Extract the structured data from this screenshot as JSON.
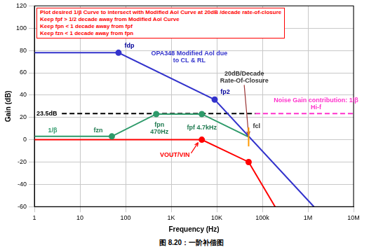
{
  "chart_data": {
    "type": "line",
    "title": "图 8.20：一阶补偿图",
    "x_label": "Frequency (Hz)",
    "y_label": "Gain (dB)",
    "log": "x",
    "grid": true,
    "xlim": [
      1,
      10000000
    ],
    "xticks": [
      1,
      10,
      100,
      {
        "value": 1000,
        "label": "1K"
      },
      {
        "value": 10000,
        "label": "10K"
      },
      {
        "value": 100000,
        "label": "100k"
      },
      {
        "value": 1000000,
        "label": "1M"
      },
      {
        "value": 10000000,
        "label": "10M"
      }
    ],
    "ylim": [
      -60,
      120
    ],
    "yticks": [
      -60,
      -40,
      -20,
      0,
      20,
      40,
      60,
      80,
      100,
      120
    ],
    "text_box": {
      "color": "#ff0000",
      "lines": [
        "Plot desired 1/β Curve to intersect with Modified Aol Curve at 20dB /decade rate-of-closure",
        "Keep fpf > 1/2 decade away from Modified Aol Curve",
        "Keep fpn < 1 decade away from fpf",
        "Keep fzn < 1 decade away from fpn"
      ]
    },
    "series": [
      {
        "name": "OPA348 Modified Aol due to CL & RL",
        "color": "#3333cc",
        "marker": "circle",
        "line_style": "solid",
        "x": [
          1,
          70,
          9000,
          1350000
        ],
        "values": [
          78,
          78,
          36,
          -60
        ]
      },
      {
        "name": "1/β",
        "color": "#2e9a6a",
        "marker": "circle",
        "line_style": "solid",
        "x": [
          1,
          50,
          470,
          4700,
          50000
        ],
        "values": [
          3,
          3,
          23,
          23,
          2.5
        ]
      },
      {
        "name": "VOUT/VIN",
        "color": "#ff0000",
        "marker": "circle",
        "line_style": "solid",
        "x": [
          1,
          4700,
          50000,
          190000
        ],
        "values": [
          0,
          0,
          -20,
          -60
        ]
      },
      {
        "name": "Noise Gain contribution: 1/β Hi-f",
        "color": "#ff33cc",
        "marker": "none",
        "line_style": "dashed",
        "x": [
          70000,
          10000000
        ],
        "values": [
          23.5,
          23.5
        ]
      },
      {
        "name": "23.5dB",
        "color": "#000000",
        "marker": "none",
        "line_style": "dashed",
        "x": [
          4,
          70000
        ],
        "values": [
          23.5,
          23.5
        ]
      }
    ],
    "annotations": [
      {
        "text": "fdp",
        "color": "#000099"
      },
      {
        "text": "fp2",
        "color": "#000099"
      },
      {
        "text": "fzn",
        "color": "#1f7a50"
      },
      {
        "text": "fpn 470Hz",
        "color": "#1f7a50"
      },
      {
        "text": "fpf 4.7kHz",
        "color": "#1f7a50"
      },
      {
        "text": "20dB/Decade Rate-Of-Closure",
        "color": "#333333"
      },
      {
        "text": "fcl",
        "color": "#333333"
      }
    ]
  }
}
